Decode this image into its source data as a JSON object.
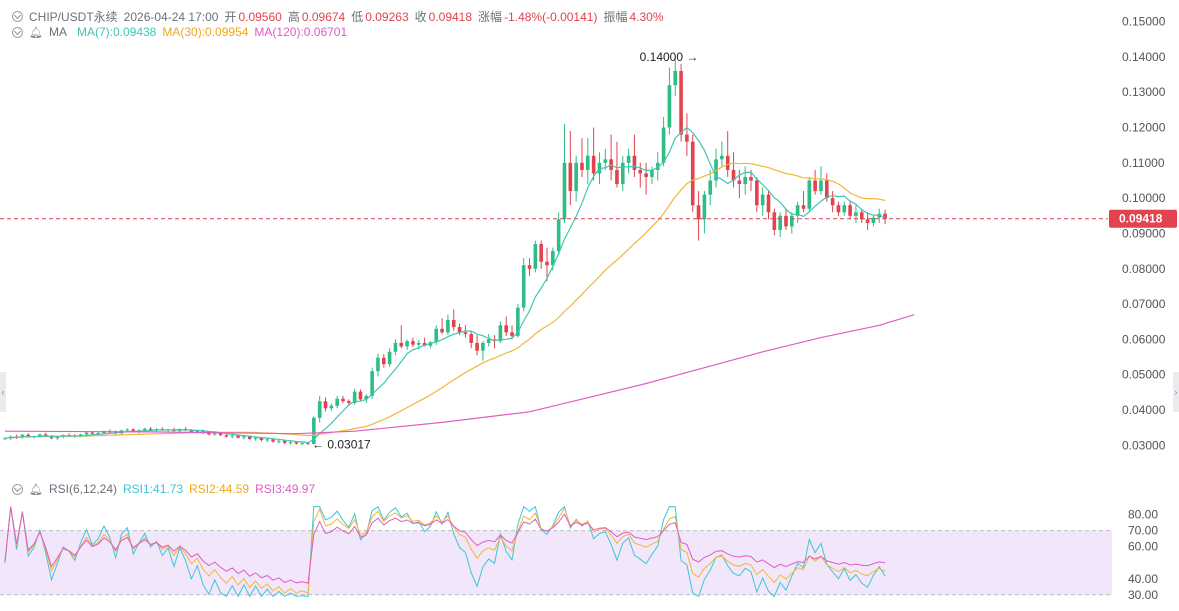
{
  "header": {
    "symbol": "CHIP/USDT永续",
    "datetime": "2026-04-24 17:00",
    "open_label": "开",
    "open": "0.09560",
    "high_label": "高",
    "high": "0.09674",
    "low_label": "低",
    "low": "0.09263",
    "close_label": "收",
    "close": "0.09418",
    "change_label": "涨幅",
    "change": "-1.48%(-0.00141)",
    "amp_label": "振幅",
    "amp": "4.30%"
  },
  "ma_legend": {
    "label": "MA",
    "ma7": "MA(7):0.09438",
    "ma30": "MA(30):0.09954",
    "ma120": "MA(120):0.06701"
  },
  "rsi_legend": {
    "label": "RSI(6,12,24)",
    "rsi1": "RSI1:41.73",
    "rsi2": "RSI2:44.59",
    "rsi3": "RSI3:49.97"
  },
  "colors": {
    "up": "#2ebd85",
    "down": "#e2434f",
    "ma7": "#3ec6b4",
    "ma30": "#f3b63b",
    "ma120": "#e05cc4",
    "rsi1": "#3ec6d6",
    "rsi2": "#f3b63b",
    "rsi3": "#e05cc4",
    "grid": "#d6d9dd",
    "axis_text": "#50555c",
    "band": "#f2e6fb"
  },
  "chart_data": [
    {
      "type": "candlestick",
      "title": "CHIP/USDT永续",
      "ylim": [
        0.025,
        0.153
      ],
      "yticks": [
        "0.15000",
        "0.14000",
        "0.13000",
        "0.12000",
        "0.11000",
        "0.10000",
        "0.09000",
        "0.08000",
        "0.07000",
        "0.06000",
        "0.05000",
        "0.04000",
        "0.03000"
      ],
      "current_price": "0.09418",
      "max_annotation": {
        "label": "0.14000",
        "index": 120,
        "value": 0.14
      },
      "min_annotation": {
        "label": "0.03017",
        "index": 52,
        "value": 0.03017
      },
      "candles": [
        [
          0.0318,
          0.0322,
          0.0316,
          0.032
        ],
        [
          0.032,
          0.0328,
          0.0315,
          0.0325
        ],
        [
          0.0325,
          0.033,
          0.0318,
          0.0322
        ],
        [
          0.0322,
          0.0332,
          0.0319,
          0.033
        ],
        [
          0.033,
          0.0334,
          0.0322,
          0.0324
        ],
        [
          0.0324,
          0.0328,
          0.0319,
          0.0326
        ],
        [
          0.0326,
          0.0333,
          0.0322,
          0.0331
        ],
        [
          0.0331,
          0.0336,
          0.0326,
          0.0327
        ],
        [
          0.0327,
          0.0329,
          0.0317,
          0.032
        ],
        [
          0.032,
          0.0326,
          0.0316,
          0.0324
        ],
        [
          0.0324,
          0.0331,
          0.032,
          0.0329
        ],
        [
          0.0329,
          0.0334,
          0.0325,
          0.0328
        ],
        [
          0.0328,
          0.0332,
          0.0322,
          0.0326
        ],
        [
          0.0326,
          0.0333,
          0.0323,
          0.0331
        ],
        [
          0.0331,
          0.0338,
          0.0327,
          0.0336
        ],
        [
          0.0336,
          0.034,
          0.033,
          0.0333
        ],
        [
          0.0333,
          0.0337,
          0.0327,
          0.0335
        ],
        [
          0.0335,
          0.0342,
          0.0331,
          0.034
        ],
        [
          0.034,
          0.0345,
          0.0335,
          0.0338
        ],
        [
          0.0338,
          0.0342,
          0.0331,
          0.0334
        ],
        [
          0.0334,
          0.0344,
          0.0331,
          0.0342
        ],
        [
          0.0342,
          0.0348,
          0.0338,
          0.0345
        ],
        [
          0.0345,
          0.0348,
          0.0336,
          0.0339
        ],
        [
          0.0339,
          0.0345,
          0.0334,
          0.0343
        ],
        [
          0.0343,
          0.035,
          0.0339,
          0.0347
        ],
        [
          0.0347,
          0.0352,
          0.0341,
          0.0344
        ],
        [
          0.0344,
          0.0349,
          0.0338,
          0.0346
        ],
        [
          0.0346,
          0.0351,
          0.0341,
          0.0343
        ],
        [
          0.0343,
          0.0347,
          0.0337,
          0.0345
        ],
        [
          0.0345,
          0.035,
          0.0339,
          0.0341
        ],
        [
          0.0341,
          0.0348,
          0.0337,
          0.0346
        ],
        [
          0.0346,
          0.0352,
          0.034,
          0.0343
        ],
        [
          0.0343,
          0.0346,
          0.0335,
          0.0338
        ],
        [
          0.0338,
          0.0344,
          0.0333,
          0.0341
        ],
        [
          0.0341,
          0.0345,
          0.0332,
          0.0335
        ],
        [
          0.0335,
          0.034,
          0.0328,
          0.0331
        ],
        [
          0.0331,
          0.0337,
          0.0327,
          0.0334
        ],
        [
          0.0334,
          0.0338,
          0.0326,
          0.0329
        ],
        [
          0.0329,
          0.0333,
          0.0322,
          0.0325
        ],
        [
          0.0325,
          0.0331,
          0.032,
          0.0328
        ],
        [
          0.0328,
          0.0331,
          0.0319,
          0.0322
        ],
        [
          0.0322,
          0.0328,
          0.0317,
          0.0325
        ],
        [
          0.0325,
          0.0328,
          0.0315,
          0.0318
        ],
        [
          0.0318,
          0.0324,
          0.0313,
          0.0321
        ],
        [
          0.0321,
          0.0324,
          0.0311,
          0.0315
        ],
        [
          0.0315,
          0.032,
          0.0309,
          0.0317
        ],
        [
          0.0317,
          0.032,
          0.0307,
          0.0311
        ],
        [
          0.0311,
          0.0316,
          0.0305,
          0.0313
        ],
        [
          0.0313,
          0.0316,
          0.0303,
          0.0307
        ],
        [
          0.0307,
          0.0312,
          0.0302,
          0.0309
        ],
        [
          0.0309,
          0.0311,
          0.0302,
          0.0305
        ],
        [
          0.0305,
          0.0309,
          0.0302,
          0.0306
        ],
        [
          0.0306,
          0.0308,
          0.0302,
          0.0304
        ],
        [
          0.0304,
          0.0382,
          0.03017,
          0.0378
        ],
        [
          0.0378,
          0.044,
          0.0365,
          0.0425
        ],
        [
          0.0425,
          0.0436,
          0.0396,
          0.0405
        ],
        [
          0.0405,
          0.0418,
          0.0398,
          0.0412
        ],
        [
          0.0412,
          0.044,
          0.0405,
          0.0432
        ],
        [
          0.0432,
          0.044,
          0.042,
          0.0425
        ],
        [
          0.0425,
          0.043,
          0.0415,
          0.042
        ],
        [
          0.042,
          0.046,
          0.0415,
          0.0452
        ],
        [
          0.0452,
          0.0458,
          0.0425,
          0.043
        ],
        [
          0.043,
          0.0445,
          0.042,
          0.044
        ],
        [
          0.044,
          0.052,
          0.0432,
          0.051
        ],
        [
          0.051,
          0.056,
          0.0495,
          0.0548
        ],
        [
          0.0548,
          0.0558,
          0.052,
          0.053
        ],
        [
          0.053,
          0.0575,
          0.0522,
          0.0565
        ],
        [
          0.0565,
          0.06,
          0.0555,
          0.059
        ],
        [
          0.059,
          0.064,
          0.0575,
          0.058
        ],
        [
          0.058,
          0.06,
          0.057,
          0.0595
        ],
        [
          0.0595,
          0.0605,
          0.0578,
          0.0585
        ],
        [
          0.0585,
          0.0598,
          0.0572,
          0.059
        ],
        [
          0.059,
          0.0605,
          0.058,
          0.0582
        ],
        [
          0.0582,
          0.0595,
          0.0575,
          0.0592
        ],
        [
          0.0592,
          0.064,
          0.0585,
          0.063
        ],
        [
          0.063,
          0.066,
          0.0615,
          0.062
        ],
        [
          0.062,
          0.067,
          0.0612,
          0.0655
        ],
        [
          0.0655,
          0.0685,
          0.0625,
          0.0635
        ],
        [
          0.0635,
          0.0645,
          0.0612,
          0.062
        ],
        [
          0.062,
          0.064,
          0.0605,
          0.0615
        ],
        [
          0.0615,
          0.0625,
          0.0575,
          0.059
        ],
        [
          0.059,
          0.0612,
          0.0555,
          0.0568
        ],
        [
          0.0568,
          0.0595,
          0.054,
          0.059
        ],
        [
          0.059,
          0.0615,
          0.058,
          0.06
        ],
        [
          0.06,
          0.0612,
          0.0575,
          0.0595
        ],
        [
          0.0595,
          0.065,
          0.059,
          0.064
        ],
        [
          0.064,
          0.0665,
          0.061,
          0.062
        ],
        [
          0.062,
          0.064,
          0.06,
          0.061
        ],
        [
          0.061,
          0.07,
          0.0605,
          0.069
        ],
        [
          0.069,
          0.083,
          0.068,
          0.081
        ],
        [
          0.081,
          0.083,
          0.078,
          0.08
        ],
        [
          0.08,
          0.088,
          0.079,
          0.087
        ],
        [
          0.087,
          0.088,
          0.08,
          0.082
        ],
        [
          0.082,
          0.086,
          0.0765,
          0.081
        ],
        [
          0.081,
          0.086,
          0.0795,
          0.085
        ],
        [
          0.085,
          0.096,
          0.084,
          0.094
        ],
        [
          0.094,
          0.121,
          0.093,
          0.11
        ],
        [
          0.11,
          0.119,
          0.098,
          0.102
        ],
        [
          0.102,
          0.112,
          0.099,
          0.11
        ],
        [
          0.11,
          0.117,
          0.106,
          0.108
        ],
        [
          0.108,
          0.117,
          0.104,
          0.112
        ],
        [
          0.112,
          0.12,
          0.105,
          0.107
        ],
        [
          0.107,
          0.113,
          0.104,
          0.11
        ],
        [
          0.11,
          0.114,
          0.108,
          0.111
        ],
        [
          0.111,
          0.118,
          0.105,
          0.108
        ],
        [
          0.108,
          0.116,
          0.103,
          0.104
        ],
        [
          0.104,
          0.112,
          0.102,
          0.11
        ],
        [
          0.11,
          0.114,
          0.107,
          0.112
        ],
        [
          0.112,
          0.118,
          0.106,
          0.108
        ],
        [
          0.108,
          0.11,
          0.103,
          0.107
        ],
        [
          0.107,
          0.11,
          0.101,
          0.106
        ],
        [
          0.106,
          0.109,
          0.104,
          0.108
        ],
        [
          0.108,
          0.113,
          0.105,
          0.11
        ],
        [
          0.11,
          0.123,
          0.109,
          0.12
        ],
        [
          0.12,
          0.137,
          0.118,
          0.132
        ],
        [
          0.132,
          0.14,
          0.129,
          0.136
        ],
        [
          0.136,
          0.138,
          0.116,
          0.118
        ],
        [
          0.118,
          0.124,
          0.112,
          0.116
        ],
        [
          0.116,
          0.118,
          0.096,
          0.098
        ],
        [
          0.098,
          0.102,
          0.088,
          0.094
        ],
        [
          0.094,
          0.102,
          0.09,
          0.101
        ],
        [
          0.101,
          0.108,
          0.098,
          0.105
        ],
        [
          0.105,
          0.114,
          0.103,
          0.111
        ],
        [
          0.111,
          0.116,
          0.109,
          0.112
        ],
        [
          0.112,
          0.119,
          0.106,
          0.108
        ],
        [
          0.108,
          0.113,
          0.103,
          0.105
        ],
        [
          0.105,
          0.108,
          0.1,
          0.104
        ],
        [
          0.104,
          0.109,
          0.101,
          0.106
        ],
        [
          0.106,
          0.108,
          0.102,
          0.105
        ],
        [
          0.105,
          0.106,
          0.096,
          0.098
        ],
        [
          0.098,
          0.103,
          0.095,
          0.101
        ],
        [
          0.101,
          0.102,
          0.094,
          0.096
        ],
        [
          0.096,
          0.097,
          0.0895,
          0.091
        ],
        [
          0.091,
          0.096,
          0.089,
          0.095
        ],
        [
          0.095,
          0.097,
          0.091,
          0.092
        ],
        [
          0.092,
          0.096,
          0.09,
          0.095
        ],
        [
          0.095,
          0.099,
          0.093,
          0.098
        ],
        [
          0.098,
          0.102,
          0.096,
          0.097
        ],
        [
          0.097,
          0.106,
          0.096,
          0.105
        ],
        [
          0.105,
          0.108,
          0.101,
          0.102
        ],
        [
          0.102,
          0.109,
          0.101,
          0.105
        ],
        [
          0.105,
          0.107,
          0.099,
          0.1
        ],
        [
          0.1,
          0.102,
          0.096,
          0.098
        ],
        [
          0.098,
          0.099,
          0.095,
          0.096
        ],
        [
          0.096,
          0.099,
          0.095,
          0.098
        ],
        [
          0.098,
          0.099,
          0.094,
          0.095
        ],
        [
          0.095,
          0.098,
          0.093,
          0.096
        ],
        [
          0.096,
          0.097,
          0.093,
          0.094
        ],
        [
          0.094,
          0.096,
          0.091,
          0.093
        ],
        [
          0.093,
          0.095,
          0.092,
          0.0945
        ],
        [
          0.0945,
          0.097,
          0.093,
          0.0956
        ],
        [
          0.0956,
          0.09674,
          0.09263,
          0.09418
        ]
      ],
      "ma120": [
        [
          0,
          0.034
        ],
        [
          25,
          0.0338
        ],
        [
          50,
          0.0333
        ],
        [
          60,
          0.034
        ],
        [
          75,
          0.0365
        ],
        [
          90,
          0.0395
        ],
        [
          100,
          0.0435
        ],
        [
          110,
          0.0475
        ],
        [
          120,
          0.052
        ],
        [
          130,
          0.0565
        ],
        [
          140,
          0.0605
        ],
        [
          150,
          0.064
        ],
        [
          156,
          0.06701
        ]
      ],
      "ma30_label": "MA(30)",
      "ma7_label": "MA(7)"
    },
    {
      "type": "line",
      "title": "RSI(6,12,24)",
      "ylim": [
        28,
        86
      ],
      "yticks": [
        "80.00",
        "70.00",
        "60.00",
        "40.00",
        "30.00"
      ],
      "band": [
        30,
        70
      ],
      "series": [
        {
          "name": "RSI1",
          "last": 41.73
        },
        {
          "name": "RSI2",
          "last": 44.59
        },
        {
          "name": "RSI3",
          "last": 49.97
        }
      ]
    }
  ]
}
